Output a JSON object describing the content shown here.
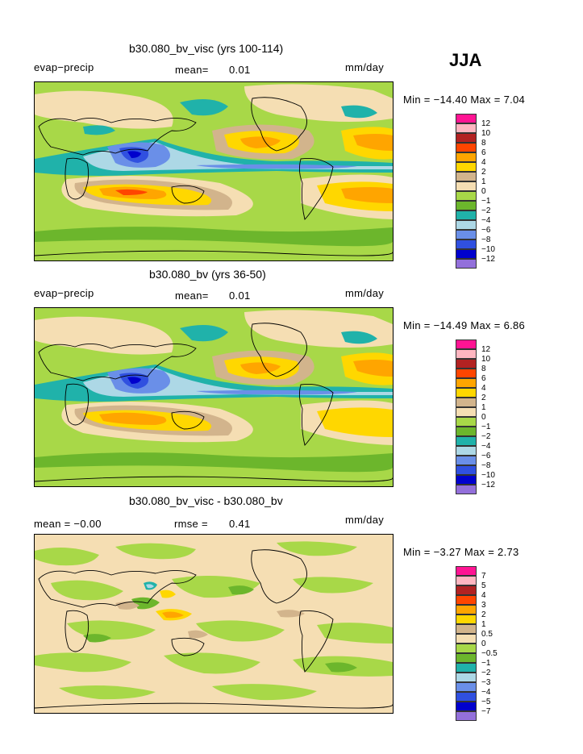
{
  "season": "JJA",
  "colors": {
    "n12": "#9370db",
    "n10": "#0000cd",
    "n8": "#3050e0",
    "n6": "#6a8fe8",
    "n4": "#add8e6",
    "n2": "#20b2aa",
    "n1": "#6cb62c",
    "n0": "#a8d848",
    "p0": "#f5deb3",
    "p1": "#d2b48c",
    "p2": "#ffd700",
    "p4": "#ffa500",
    "p6": "#ff4500",
    "p8": "#b22222",
    "p10": "#ffb6c1",
    "p12": "#ff1493",
    "frame": "#6fa832"
  },
  "panels": [
    {
      "title": "b30.080_bv_visc (yrs 100-114)",
      "left_label": "evap−precip",
      "center_label": "mean=",
      "center_value": "0.01",
      "units": "mm/day",
      "min_max": "Min = −14.40 Max =    7.04",
      "legend": [
        "12",
        "10",
        "8",
        "6",
        "4",
        "2",
        "1",
        "0",
        "−1",
        "−2",
        "−4",
        "−6",
        "−8",
        "−10",
        "−12"
      ]
    },
    {
      "title": "b30.080_bv (yrs 36-50)",
      "left_label": "evap−precip",
      "center_label": "mean=",
      "center_value": "0.01",
      "units": "mm/day",
      "min_max": "Min = −14.49 Max =    6.86",
      "legend": [
        "12",
        "10",
        "8",
        "6",
        "4",
        "2",
        "1",
        "0",
        "−1",
        "−2",
        "−4",
        "−6",
        "−8",
        "−10",
        "−12"
      ]
    },
    {
      "title": "b30.080_bv_visc - b30.080_bv",
      "left_label": "mean =  −0.00",
      "center_label": "rmse =",
      "center_value": "0.41",
      "units": "mm/day",
      "min_max": "Min =  −3.27 Max =    2.73",
      "legend": [
        "7",
        "5",
        "4",
        "3",
        "2",
        "1",
        "0.5",
        "0",
        "−0.5",
        "−1",
        "−2",
        "−3",
        "−4",
        "−5",
        "−7"
      ]
    }
  ]
}
